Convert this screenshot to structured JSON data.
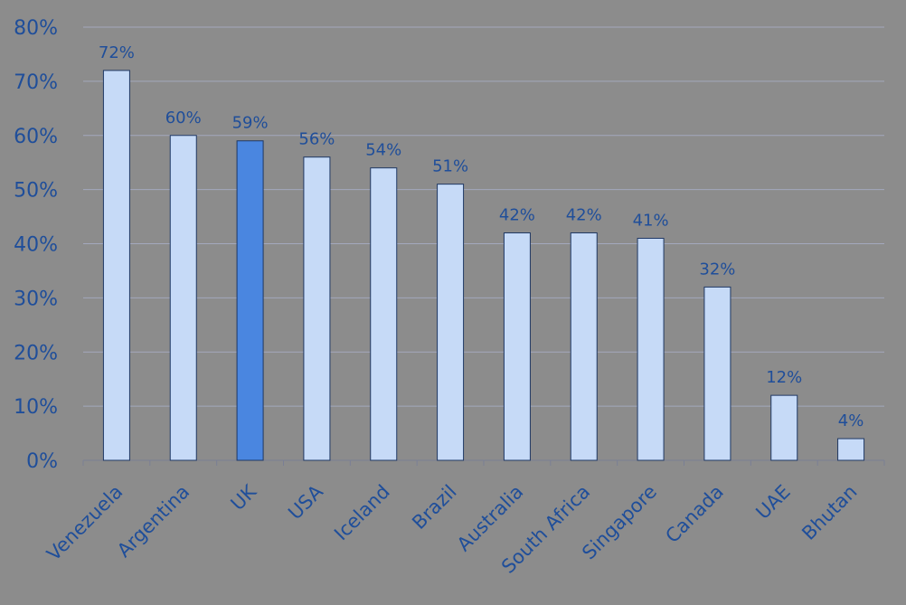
{
  "chart_data": {
    "type": "bar",
    "title": "",
    "xlabel": "",
    "ylabel": "",
    "categories": [
      "Venezuela",
      "Argentina",
      "UK",
      "USA",
      "Iceland",
      "Brazil",
      "Australia",
      "South Africa",
      "Singapore",
      "Canada",
      "UAE",
      "Bhutan"
    ],
    "values": [
      72,
      60,
      59,
      56,
      54,
      51,
      42,
      42,
      41,
      32,
      12,
      4
    ],
    "data_labels": [
      "72%",
      "60%",
      "59%",
      "56%",
      "54%",
      "51%",
      "42%",
      "42%",
      "41%",
      "32%",
      "12%",
      "4%"
    ],
    "highlight_category": "UK",
    "ylim": [
      0,
      80
    ],
    "y_ticks": [
      0,
      10,
      20,
      30,
      40,
      50,
      60,
      70,
      80
    ],
    "y_tick_labels": [
      "0%",
      "10%",
      "20%",
      "30%",
      "40%",
      "50%",
      "60%",
      "70%",
      "80%"
    ],
    "grid": true,
    "legend": "none",
    "colors": {
      "background": "#8c8c8c",
      "bar": "#c6daf7",
      "bar_highlight": "#4a86e0",
      "bar_border": "#1f3864",
      "text": "#1f4e9a",
      "gridline": "#a3a8bd",
      "axis": "#7a7f95"
    }
  }
}
